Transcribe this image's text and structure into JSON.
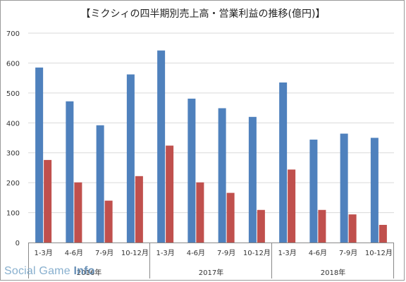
{
  "chart_data": {
    "type": "bar",
    "title": "【ミクシィの四半期別売上高・営業利益の推移(億円)】",
    "ylim": [
      0,
      700
    ],
    "yticks": [
      0,
      100,
      200,
      300,
      400,
      500,
      600,
      700
    ],
    "grid": true,
    "categories": [
      "1-3月",
      "4-6月",
      "7-9月",
      "10-12月",
      "1-3月",
      "4-6月",
      "7-9月",
      "10-12月",
      "1-3月",
      "4-6月",
      "7-9月",
      "10-12月"
    ],
    "groups": [
      {
        "label": "2016年",
        "span": 4
      },
      {
        "label": "2017年",
        "span": 4
      },
      {
        "label": "2018年",
        "span": 4
      }
    ],
    "series": [
      {
        "name": "",
        "color": "#4f81bd",
        "values": [
          585,
          472,
          392,
          562,
          642,
          481,
          449,
          420,
          535,
          344,
          364,
          350
        ]
      },
      {
        "name": "",
        "color": "#c0504d",
        "values": [
          276,
          201,
          140,
          222,
          324,
          201,
          166,
          109,
          244,
          109,
          94,
          59
        ]
      }
    ]
  },
  "watermark": {
    "prefix": "Social Game ",
    "suffix": "Info"
  }
}
